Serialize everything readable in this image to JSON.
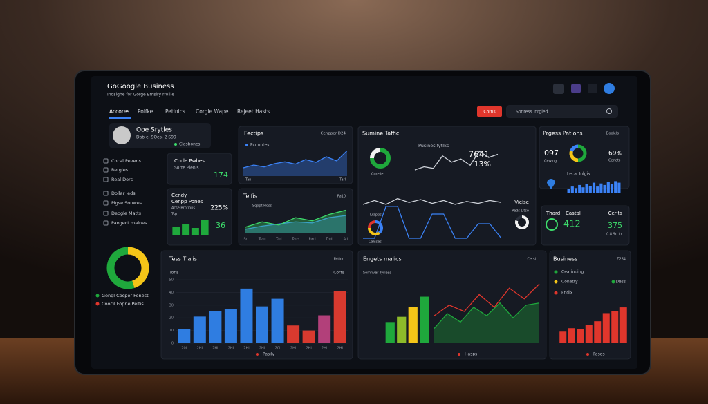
{
  "header": {
    "title": "GoGoogle Business",
    "subtitle": "Indsighe for Gorge Emsiry rrolile"
  },
  "nav": [
    "Accores",
    "Polfke",
    "Petlnics",
    "Corgle Wape",
    "Rejeet Hasts"
  ],
  "button": "Corns",
  "search": "Sonress Inrgled",
  "profile": {
    "name": "Ooe Srytles",
    "meta": "Dab e, 9Oes, 2 S99",
    "status": "Clasboncs"
  },
  "menu": [
    "Cocal Pevens",
    "Rergles",
    "Real Dors",
    "Dollar leds",
    "Pigse Sonwes",
    "Deogle Matts",
    "Paogect malnes"
  ],
  "side_donut": {
    "values": [
      45,
      55
    ],
    "colors": [
      "#f5c518",
      "#1fa83c"
    ],
    "legend": [
      "Gengl Cocper Fenect",
      "Coocil Fopne Peltis"
    ]
  },
  "panels": [
    {
      "texts": [
        "Cocle Pwbes",
        "Sorte Plenis",
        "174"
      ],
      "charts": []
    },
    {
      "texts": [
        "Fectips",
        "Cenpper D24",
        "Fcunntes",
        "Tan",
        "Tarl"
      ],
      "charts": [
        {
          "type": "area",
          "ylim": [
            0,
            60
          ],
          "series": [
            {
              "color": "#3b82f6",
              "values": [
                18,
                24,
                20,
                27,
                31,
                26,
                36,
                30,
                42,
                33,
                55
              ]
            }
          ]
        }
      ]
    },
    {
      "texts": [
        "Sumine Taffic",
        "Pusines fytlks",
        "7641",
        "13%",
        "Corelle",
        "Vielse",
        "Peds Dtso",
        "Lrapps",
        "Calsses"
      ],
      "charts": [
        {
          "type": "donut",
          "values": [
            75,
            25
          ],
          "colors": [
            "#1fa83c",
            "#f2f2f2"
          ]
        },
        {
          "type": "line",
          "ylim": [
            0,
            40
          ],
          "series": [
            {
              "color": "#cfd3da",
              "values": [
                8,
                12,
                10,
                26,
                18,
                22,
                14,
                32,
                24,
                28
              ]
            }
          ]
        },
        {
          "type": "line",
          "ylim": [
            0,
            50
          ],
          "series": [
            {
              "color": "#3b82f6",
              "values": [
                5,
                5,
                38,
                38,
                5,
                5,
                30,
                30,
                5,
                5,
                20,
                20,
                5
              ]
            },
            {
              "color": "#cfd3da",
              "values": [
                40,
                44,
                40,
                46,
                42,
                45,
                41,
                44,
                40,
                43,
                41,
                44,
                42
              ]
            }
          ]
        },
        {
          "type": "donut",
          "values": [
            40,
            35,
            25
          ],
          "colors": [
            "#3b82f6",
            "#f5c518",
            "#e0362c"
          ]
        },
        {
          "type": "donut",
          "values": [
            80,
            20
          ],
          "colors": [
            "#f2f2f2",
            "#2a2f3a"
          ]
        }
      ]
    },
    {
      "texts": [
        "Prgess Pations",
        "Doolels",
        "097",
        "Cewing",
        "69%",
        "Cenets",
        "Lecal Inlgis"
      ],
      "charts": [
        {
          "type": "donut",
          "values": [
            50,
            30,
            20
          ],
          "colors": [
            "#1fa83c",
            "#f5c518",
            "#3b82f6"
          ]
        },
        {
          "type": "bar",
          "ylim": [
            0,
            20
          ],
          "color": "#3b82f6",
          "values": [
            6,
            9,
            7,
            11,
            8,
            12,
            10,
            14,
            9,
            13,
            11,
            15,
            12,
            16,
            14
          ]
        }
      ]
    },
    {
      "texts": [
        "Cendy",
        "Cenpp Pones",
        "Acse Brotions",
        "225%",
        "Tsp",
        "36"
      ],
      "charts": [
        {
          "type": "bar",
          "ylim": [
            0,
            25
          ],
          "color": "#1fa83c",
          "values": [
            12,
            15,
            10,
            21
          ]
        }
      ]
    },
    {
      "texts": [
        "Telfis",
        "Pa10",
        "Sqopt Hoss"
      ],
      "charts": [
        {
          "type": "area",
          "ylim": [
            0,
            50
          ],
          "categories": [
            "Sr",
            "Trao",
            "Tad",
            "Taus",
            "Pacl",
            "Thd",
            "Arl"
          ],
          "series": [
            {
              "color": "#3b82f6",
              "values": [
                8,
                14,
                18,
                22,
                20,
                30,
                34
              ]
            },
            {
              "color": "#3ddc6b",
              "values": [
                12,
                22,
                16,
                30,
                24,
                36,
                44
              ]
            }
          ]
        }
      ]
    },
    {
      "texts": [
        "Thard",
        "Castal",
        "Cerits",
        "412",
        "375",
        "0.8 9o Itr"
      ],
      "charts": []
    },
    {
      "texts": [
        "Tess Tlalis",
        "Fetion",
        "Tons",
        "Corts",
        "Pasily"
      ],
      "charts": [
        {
          "type": "bar",
          "ylim": [
            0,
            50
          ],
          "yticks": [
            0,
            10,
            20,
            30,
            40,
            50
          ],
          "categories": [
            "20i",
            "2Hl",
            "2Hl",
            "2HI",
            "2Hl",
            "2Hl",
            "20l",
            "2Hl",
            "2Hl",
            "2Hl",
            "2Hl"
          ],
          "values": [
            11,
            21,
            25,
            27,
            43,
            29,
            35,
            14,
            10,
            22,
            41
          ],
          "colors": [
            "#2f7de1",
            "#2f7de1",
            "#2f7de1",
            "#2f7de1",
            "#2f7de1",
            "#2f7de1",
            "#2f7de1",
            "#d83a2f",
            "#d83a2f",
            "#b2407a",
            "#d83a2f"
          ]
        }
      ]
    },
    {
      "texts": [
        "Engets malics",
        "Cetsl",
        "Somnver Tyriess",
        "Hasps"
      ],
      "charts": [
        {
          "type": "bar",
          "ylim": [
            0,
            60
          ],
          "values": [
            20,
            25,
            34,
            44
          ],
          "colors": [
            "#1fa83c",
            "#8dbb2a",
            "#f5c518",
            "#1fa83c"
          ]
        },
        {
          "type": "area",
          "ylim": [
            0,
            60
          ],
          "series": [
            {
              "color": "#1fa83c",
              "values": [
                14,
                28,
                20,
                34,
                26,
                38,
                24,
                36,
                38
              ]
            }
          ]
        },
        {
          "type": "line",
          "ylim": [
            0,
            60
          ],
          "series": [
            {
              "color": "#e0362c",
              "values": [
                26,
                36,
                30,
                46,
                34,
                52,
                42,
                56
              ]
            }
          ]
        }
      ]
    },
    {
      "texts": [
        "Business",
        "Z2S4",
        "Ceatiouing",
        "Conatry",
        "Fndix",
        "Dess",
        "Fasgs"
      ],
      "charts": [
        {
          "type": "bar",
          "ylim": [
            0,
            40
          ],
          "color": "#e0362c",
          "values": [
            10,
            13,
            12,
            16,
            19,
            26,
            28,
            31
          ]
        }
      ]
    }
  ]
}
